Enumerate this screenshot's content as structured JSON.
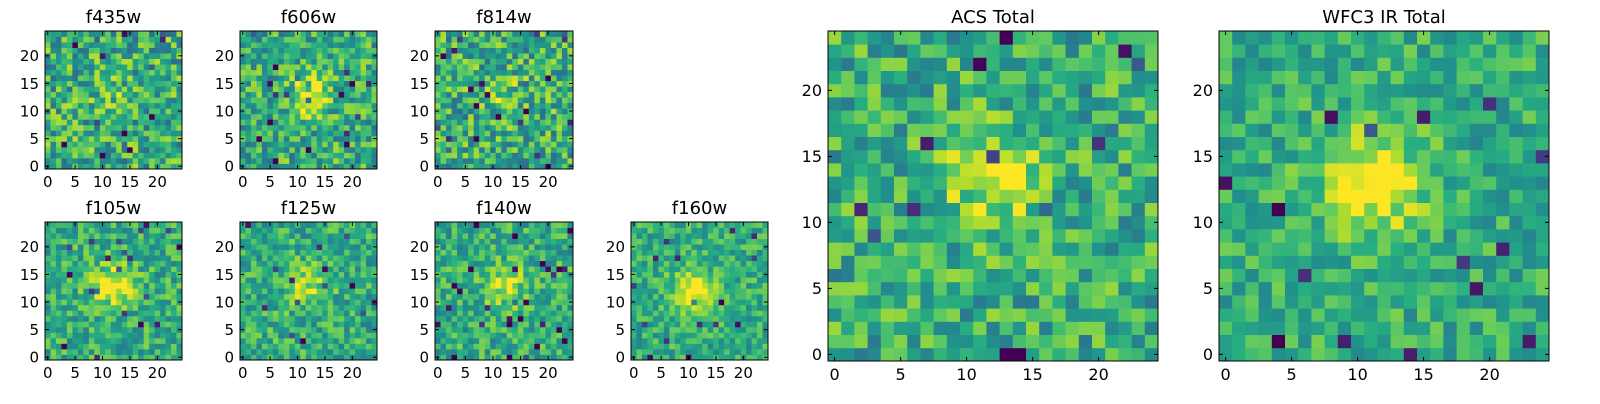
{
  "colormap": "viridis",
  "colors": {
    "low": "#440154",
    "mid": "#21918c",
    "high": "#fde725"
  },
  "chart_data": [
    {
      "type": "heatmap",
      "title": "f435w",
      "grid_size": 25,
      "xticks": [
        "0",
        "5",
        "10",
        "15",
        "20"
      ],
      "yticks": [
        "0",
        "5",
        "10",
        "15",
        "20"
      ],
      "seed": 11,
      "noise": 0.55,
      "peak": 0.1,
      "peak_center": [
        12,
        13
      ]
    },
    {
      "type": "heatmap",
      "title": "f606w",
      "grid_size": 25,
      "xticks": [
        "0",
        "5",
        "10",
        "15",
        "20"
      ],
      "yticks": [
        "0",
        "5",
        "10",
        "15",
        "20"
      ],
      "seed": 23,
      "noise": 0.5,
      "peak": 0.35,
      "peak_center": [
        12,
        13
      ]
    },
    {
      "type": "heatmap",
      "title": "f814w",
      "grid_size": 25,
      "xticks": [
        "0",
        "5",
        "10",
        "15",
        "20"
      ],
      "yticks": [
        "0",
        "5",
        "10",
        "15",
        "20"
      ],
      "seed": 37,
      "noise": 0.55,
      "peak": 0.15,
      "peak_center": [
        12,
        13
      ]
    },
    {
      "type": "heatmap",
      "title": "f105w",
      "grid_size": 25,
      "xticks": [
        "0",
        "5",
        "10",
        "15",
        "20"
      ],
      "yticks": [
        "0",
        "5",
        "10",
        "15",
        "20"
      ],
      "seed": 41,
      "noise": 0.4,
      "peak": 0.4,
      "peak_center": [
        12,
        13
      ]
    },
    {
      "type": "heatmap",
      "title": "f125w",
      "grid_size": 25,
      "xticks": [
        "0",
        "5",
        "10",
        "15",
        "20"
      ],
      "yticks": [
        "0",
        "5",
        "10",
        "15",
        "20"
      ],
      "seed": 53,
      "noise": 0.4,
      "peak": 0.25,
      "peak_center": [
        12,
        13
      ]
    },
    {
      "type": "heatmap",
      "title": "f140w",
      "grid_size": 25,
      "xticks": [
        "0",
        "5",
        "10",
        "15",
        "20"
      ],
      "yticks": [
        "0",
        "5",
        "10",
        "15",
        "20"
      ],
      "seed": 67,
      "noise": 0.4,
      "peak": 0.3,
      "peak_center": [
        12,
        13
      ]
    },
    {
      "type": "heatmap",
      "title": "f160w",
      "grid_size": 25,
      "xticks": [
        "0",
        "5",
        "10",
        "15",
        "20"
      ],
      "yticks": [
        "0",
        "5",
        "10",
        "15",
        "20"
      ],
      "seed": 79,
      "noise": 0.35,
      "peak": 0.45,
      "peak_center": [
        11,
        12
      ]
    },
    {
      "type": "heatmap",
      "title": "ACS Total",
      "grid_size": 25,
      "xticks": [
        "0",
        "5",
        "10",
        "15",
        "20"
      ],
      "yticks": [
        "0",
        "5",
        "10",
        "15",
        "20"
      ],
      "seed": 97,
      "noise": 0.45,
      "peak": 0.3,
      "peak_center": [
        12,
        13
      ]
    },
    {
      "type": "heatmap",
      "title": "WFC3 IR Total",
      "grid_size": 25,
      "xticks": [
        "0",
        "5",
        "10",
        "15",
        "20"
      ],
      "yticks": [
        "0",
        "5",
        "10",
        "15",
        "20"
      ],
      "seed": 131,
      "noise": 0.35,
      "peak": 0.45,
      "peak_center": [
        11,
        13
      ]
    }
  ]
}
